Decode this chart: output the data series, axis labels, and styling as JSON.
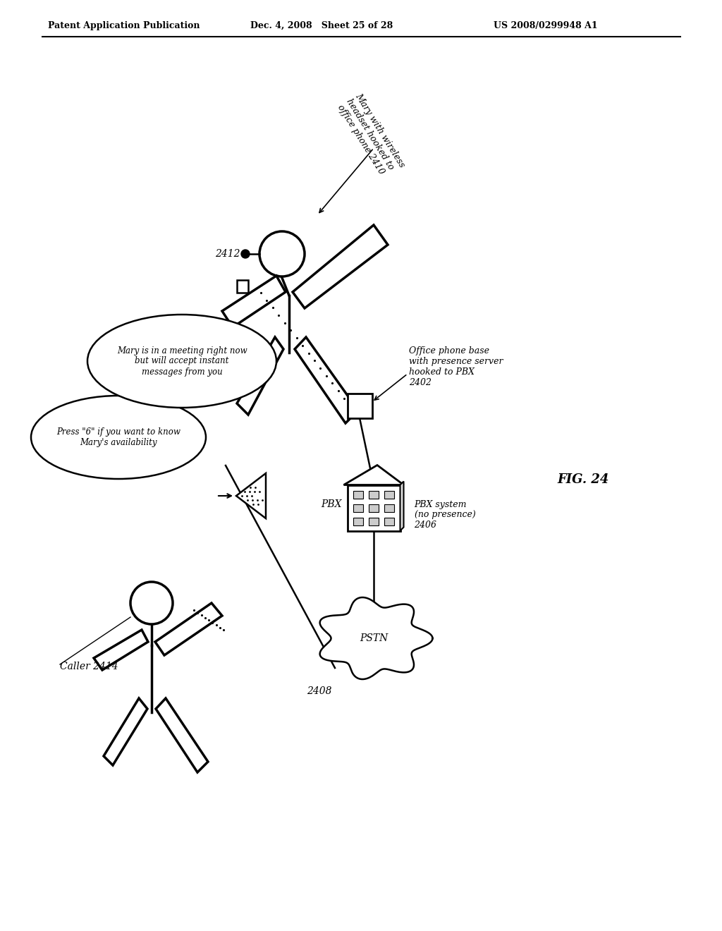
{
  "title_left": "Patent Application Publication",
  "title_mid": "Dec. 4, 2008   Sheet 25 of 28",
  "title_right": "US 2008/0299948 A1",
  "fig_label": "FIG. 24",
  "background": "#ffffff",
  "labels": {
    "mary_label": "Mary with wireless\nheadset hooked to\noffice phone 2410",
    "mary_id": "2412",
    "office_phone": "Office phone base\nwith presence server\nhooked to PBX\n2402",
    "pbx_label": "PBX",
    "pbx_system": "PBX system\n(no presence)\n2406",
    "pstn_label": "PSTN",
    "pstn_id": "2408",
    "caller_id": "Caller 2414",
    "bubble1": "Press \"6\" if you want to know\nMary's availability",
    "bubble2": "Mary is in a meeting right now\nbut will accept instant\nmessages from you"
  }
}
